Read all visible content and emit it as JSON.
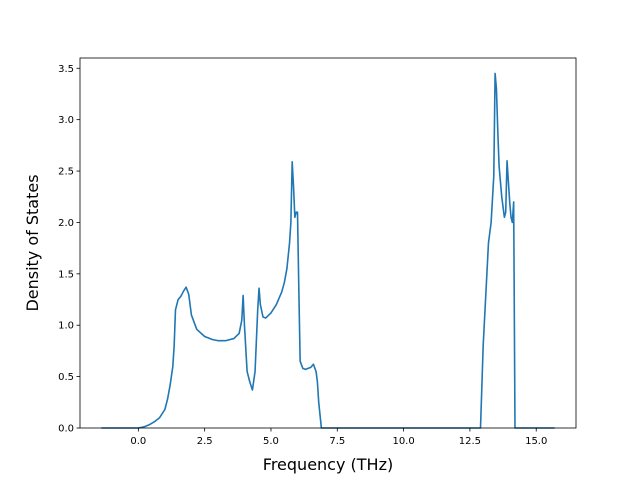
{
  "chart_data": {
    "type": "line",
    "title": "",
    "xlabel": "Frequency (THz)",
    "ylabel": "Density of States",
    "xlim": [
      -2.2,
      16.5
    ],
    "ylim": [
      0,
      3.6
    ],
    "xticks": [
      0.0,
      2.5,
      5.0,
      7.5,
      10.0,
      12.5,
      15.0
    ],
    "xtick_labels": [
      "0.0",
      "2.5",
      "5.0",
      "7.5",
      "10.0",
      "12.5",
      "15.0"
    ],
    "yticks": [
      0.0,
      0.5,
      1.0,
      1.5,
      2.0,
      2.5,
      3.0,
      3.5
    ],
    "ytick_labels": [
      "0.0",
      "0.5",
      "1.0",
      "1.5",
      "2.0",
      "2.5",
      "3.0",
      "3.5"
    ],
    "grid": false,
    "legend": "none",
    "series": [
      {
        "color": "#1f77b4",
        "x": [
          -1.4,
          0.0,
          0.2,
          0.4,
          0.6,
          0.8,
          1.0,
          1.1,
          1.2,
          1.3,
          1.35,
          1.4,
          1.5,
          1.6,
          1.7,
          1.8,
          1.9,
          2.0,
          2.2,
          2.5,
          2.8,
          3.0,
          3.3,
          3.6,
          3.8,
          3.9,
          3.95,
          4.0,
          4.1,
          4.2,
          4.3,
          4.4,
          4.5,
          4.55,
          4.6,
          4.7,
          4.8,
          5.0,
          5.2,
          5.4,
          5.5,
          5.6,
          5.7,
          5.75,
          5.8,
          5.85,
          5.9,
          5.95,
          6.0,
          6.05,
          6.1,
          6.2,
          6.3,
          6.5,
          6.6,
          6.7,
          6.75,
          6.8,
          6.9,
          7.0,
          7.5,
          10.0,
          12.5,
          12.9,
          13.0,
          13.1,
          13.2,
          13.3,
          13.4,
          13.45,
          13.5,
          13.55,
          13.6,
          13.7,
          13.8,
          13.85,
          13.9,
          14.0,
          14.05,
          14.1,
          14.15,
          14.2,
          14.25,
          14.3,
          14.35,
          14.5,
          15.0,
          15.7
        ],
        "y": [
          0.0,
          0.0,
          0.01,
          0.03,
          0.06,
          0.1,
          0.18,
          0.28,
          0.42,
          0.6,
          0.8,
          1.15,
          1.25,
          1.28,
          1.33,
          1.37,
          1.3,
          1.1,
          0.96,
          0.89,
          0.86,
          0.85,
          0.85,
          0.87,
          0.92,
          1.05,
          1.29,
          1.0,
          0.55,
          0.45,
          0.37,
          0.55,
          1.15,
          1.36,
          1.2,
          1.08,
          1.07,
          1.12,
          1.2,
          1.32,
          1.41,
          1.55,
          1.8,
          2.0,
          2.59,
          2.35,
          2.05,
          2.1,
          2.1,
          1.35,
          0.65,
          0.58,
          0.57,
          0.59,
          0.62,
          0.55,
          0.45,
          0.25,
          0.0,
          0.0,
          0.0,
          0.0,
          0.0,
          0.0,
          0.8,
          1.3,
          1.8,
          2.0,
          2.45,
          3.45,
          3.3,
          2.9,
          2.55,
          2.25,
          2.05,
          2.1,
          2.6,
          2.2,
          2.05,
          2.0,
          2.2,
          0.0,
          0.0,
          0.0,
          0.0,
          0.0,
          0.0,
          0.0
        ]
      }
    ]
  }
}
